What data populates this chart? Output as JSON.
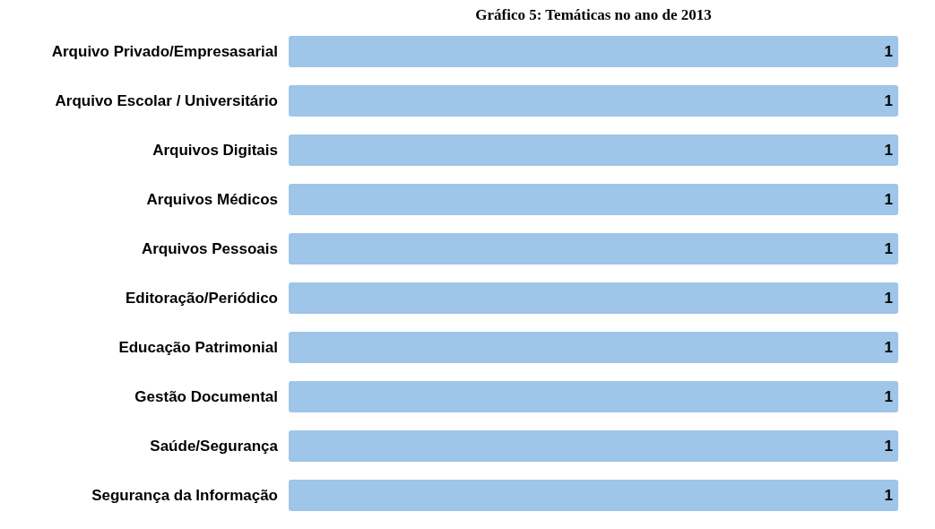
{
  "chart_data": {
    "type": "bar",
    "orientation": "horizontal",
    "title": "Gráfico 5: Temáticas no ano de 2013",
    "categories": [
      "Arquivo Privado/Empresasarial",
      "Arquivo Escolar / Universitário",
      "Arquivos Digitais",
      "Arquivos Médicos",
      "Arquivos Pessoais",
      "Editoração/Periódico",
      "Educação Patrimonial",
      "Gestão Documental",
      "Saúde/Segurança",
      "Segurança da Informação"
    ],
    "values": [
      1,
      1,
      1,
      1,
      1,
      1,
      1,
      1,
      1,
      1
    ],
    "color": "#9fc5e8",
    "data_labels": true
  }
}
